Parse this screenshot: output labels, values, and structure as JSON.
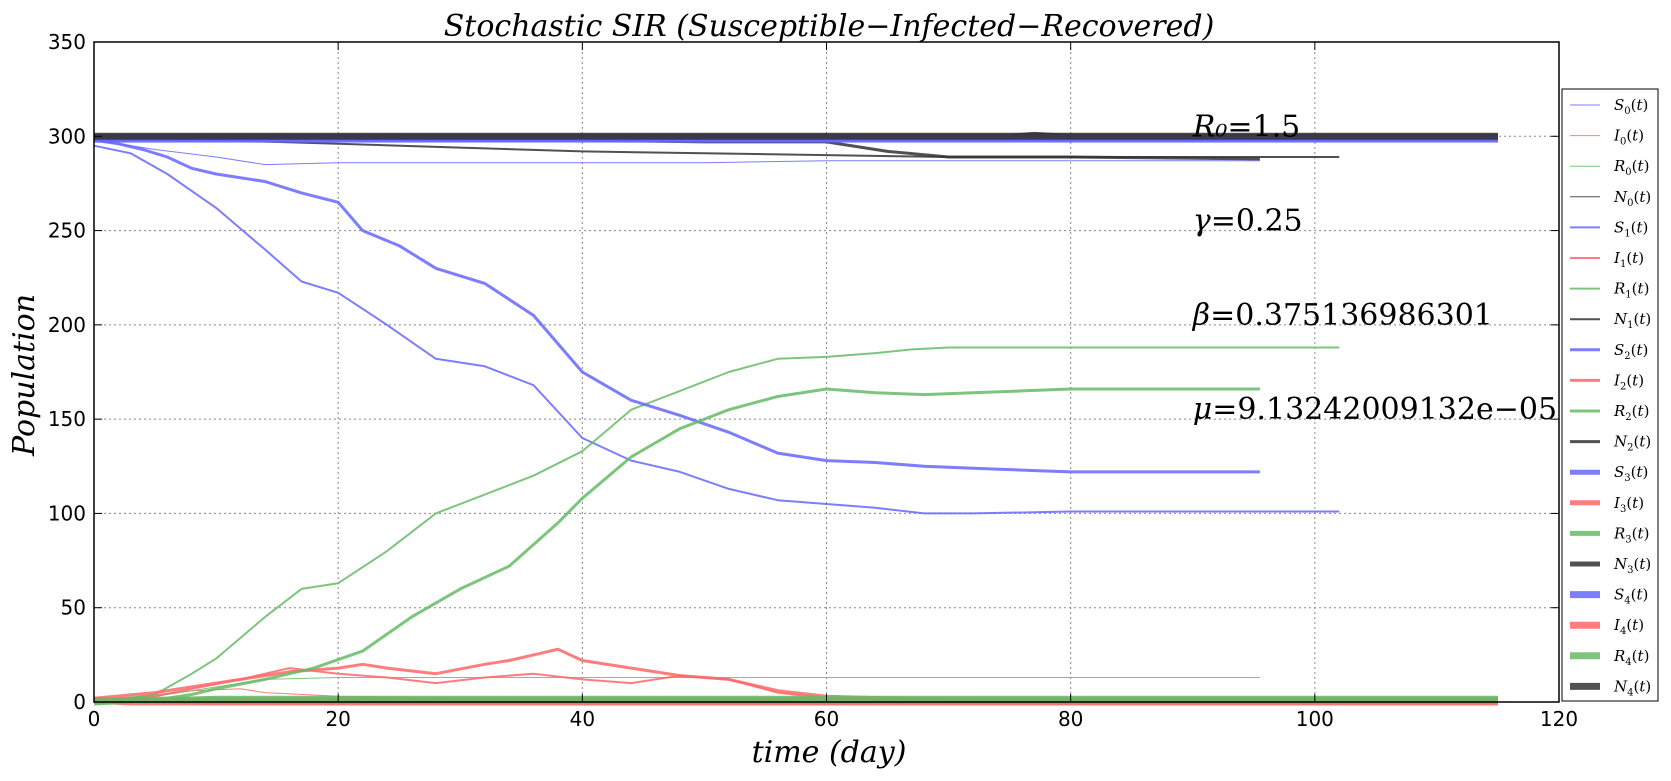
{
  "chart_data": {
    "type": "line",
    "title": "Stochastic SIR (Susceptible−Infected−Recovered)",
    "xlabel": "time (day)",
    "ylabel": "Population",
    "xlim": [
      0,
      120
    ],
    "ylim": [
      0,
      350
    ],
    "xticks": [
      0,
      20,
      40,
      60,
      80,
      100,
      120
    ],
    "yticks": [
      0,
      50,
      100,
      150,
      200,
      250,
      300,
      350
    ],
    "grid": true,
    "legend_position": "right",
    "annotations": [
      {
        "label": "R₀",
        "value": "=1.5",
        "x": 90,
        "y": 300
      },
      {
        "label": "γ",
        "value": "=0.25",
        "x": 90,
        "y": 250
      },
      {
        "label": "β",
        "value": "=0.375136986301",
        "x": 90,
        "y": 200
      },
      {
        "label": "μ",
        "value": "=9.13242009132e−05",
        "x": 90,
        "y": 150
      }
    ],
    "colors": {
      "S": "#6666ff",
      "I": "#ff6666",
      "R": "#66bb66",
      "N": "#333333",
      "grid": "#888888"
    },
    "legend": [
      {
        "var": "S",
        "sub": "0",
        "label": "S0(t)"
      },
      {
        "var": "I",
        "sub": "0",
        "label": "I0(t)"
      },
      {
        "var": "R",
        "sub": "0",
        "label": "R0(t)"
      },
      {
        "var": "N",
        "sub": "0",
        "label": "N0(t)"
      },
      {
        "var": "S",
        "sub": "1",
        "label": "S1(t)"
      },
      {
        "var": "I",
        "sub": "1",
        "label": "I1(t)"
      },
      {
        "var": "R",
        "sub": "1",
        "label": "R1(t)"
      },
      {
        "var": "N",
        "sub": "1",
        "label": "N1(t)"
      },
      {
        "var": "S",
        "sub": "2",
        "label": "S2(t)"
      },
      {
        "var": "I",
        "sub": "2",
        "label": "I2(t)"
      },
      {
        "var": "R",
        "sub": "2",
        "label": "R2(t)"
      },
      {
        "var": "N",
        "sub": "2",
        "label": "N2(t)"
      },
      {
        "var": "S",
        "sub": "3",
        "label": "S3(t)"
      },
      {
        "var": "I",
        "sub": "3",
        "label": "I3(t)"
      },
      {
        "var": "R",
        "sub": "3",
        "label": "R3(t)"
      },
      {
        "var": "N",
        "sub": "3",
        "label": "N3(t)"
      },
      {
        "var": "S",
        "sub": "4",
        "label": "S4(t)"
      },
      {
        "var": "I",
        "sub": "4",
        "label": "I4(t)"
      },
      {
        "var": "R",
        "sub": "4",
        "label": "R4(t)"
      },
      {
        "var": "N",
        "sub": "4",
        "label": "N4(t)"
      }
    ],
    "series": [
      {
        "var": "S",
        "run": 0,
        "x": [
          0,
          5,
          10,
          14,
          20,
          30,
          40,
          50,
          60,
          70,
          80,
          90,
          95.5
        ],
        "y": [
          298,
          293,
          289,
          285,
          286,
          286,
          286,
          286,
          287,
          287,
          287,
          287,
          287
        ]
      },
      {
        "var": "I",
        "run": 0,
        "x": [
          0,
          4,
          8,
          12,
          14,
          20,
          30,
          40,
          50,
          60,
          70,
          80,
          95.5
        ],
        "y": [
          1,
          3,
          6,
          7,
          5,
          3,
          2,
          2,
          1,
          1,
          0,
          0,
          0
        ]
      },
      {
        "var": "R",
        "run": 0,
        "x": [
          0,
          4,
          8,
          12,
          14,
          20,
          30,
          40,
          95.5
        ],
        "y": [
          0,
          2,
          6,
          10,
          12,
          13,
          13,
          13,
          13
        ]
      },
      {
        "var": "N",
        "run": 0,
        "x": [
          0,
          95.5
        ],
        "y": [
          300,
          300
        ]
      },
      {
        "var": "S",
        "run": 1,
        "x": [
          0,
          3,
          6,
          10,
          14,
          17,
          20,
          24,
          28,
          32,
          36,
          40,
          44,
          48,
          52,
          56,
          60,
          64,
          68,
          72,
          80,
          90,
          102
        ],
        "y": [
          295,
          291,
          280,
          262,
          240,
          223,
          217,
          200,
          182,
          178,
          168,
          140,
          128,
          122,
          113,
          107,
          105,
          103,
          100,
          100,
          101,
          101,
          101
        ]
      },
      {
        "var": "I",
        "run": 1,
        "x": [
          0,
          5,
          8,
          12,
          16,
          20,
          24,
          28,
          32,
          36,
          40,
          44,
          48,
          52,
          56,
          60,
          66,
          75,
          85,
          95,
          102
        ],
        "y": [
          1,
          3,
          7,
          12,
          18,
          15,
          13,
          10,
          13,
          15,
          12,
          10,
          14,
          12,
          5,
          2,
          1,
          1,
          0,
          0,
          0
        ]
      },
      {
        "var": "R",
        "run": 1,
        "x": [
          0,
          5,
          8,
          10,
          14,
          17,
          20,
          24,
          28,
          32,
          36,
          40,
          44,
          48,
          52,
          56,
          60,
          64,
          67,
          70,
          80,
          90,
          102
        ],
        "y": [
          0,
          4,
          15,
          23,
          45,
          60,
          63,
          80,
          100,
          110,
          120,
          133,
          155,
          165,
          175,
          182,
          183,
          185,
          187,
          188,
          188,
          188,
          188
        ]
      },
      {
        "var": "N",
        "run": 1,
        "x": [
          0,
          5,
          10,
          20,
          30,
          40,
          50,
          60,
          70,
          80,
          90,
          102
        ],
        "y": [
          299,
          299,
          298,
          296,
          294,
          292,
          291,
          290,
          289,
          289,
          289,
          289
        ]
      },
      {
        "var": "S",
        "run": 2,
        "x": [
          0,
          2,
          4,
          6,
          8,
          10,
          14,
          17,
          20,
          22,
          25,
          28,
          32,
          36,
          40,
          44,
          48,
          52,
          56,
          60,
          64,
          68,
          72,
          76,
          80,
          88,
          95.5
        ],
        "y": [
          298,
          296,
          293,
          289,
          283,
          280,
          276,
          270,
          265,
          250,
          242,
          230,
          222,
          205,
          175,
          160,
          152,
          143,
          132,
          128,
          127,
          125,
          124,
          123,
          122,
          122,
          122
        ]
      },
      {
        "var": "I",
        "run": 2,
        "x": [
          0,
          5,
          8,
          12,
          16,
          20,
          22,
          24,
          28,
          32,
          34,
          36,
          38,
          40,
          44,
          48,
          52,
          56,
          60,
          66,
          75,
          85,
          95.5
        ],
        "y": [
          2,
          5,
          8,
          12,
          16,
          18,
          20,
          18,
          15,
          20,
          22,
          25,
          28,
          22,
          18,
          14,
          12,
          6,
          3,
          2,
          1,
          0,
          0
        ]
      },
      {
        "var": "R",
        "run": 2,
        "x": [
          0,
          5,
          8,
          10,
          14,
          18,
          22,
          26,
          30,
          34,
          38,
          40,
          44,
          48,
          52,
          56,
          60,
          64,
          68,
          72,
          76,
          80,
          88,
          95.5
        ],
        "y": [
          0,
          1,
          4,
          7,
          12,
          18,
          27,
          45,
          60,
          72,
          95,
          108,
          130,
          145,
          155,
          162,
          166,
          164,
          163,
          164,
          165,
          166,
          166,
          166
        ]
      },
      {
        "var": "N",
        "run": 2,
        "x": [
          0,
          10,
          20,
          30,
          40,
          50,
          60,
          65,
          70,
          80,
          95.5
        ],
        "y": [
          300,
          300,
          299,
          298,
          298,
          297,
          297,
          292,
          289,
          289,
          288
        ]
      },
      {
        "var": "S",
        "run": 3,
        "x": [
          0,
          40,
          80,
          115
        ],
        "y": [
          298,
          298,
          298,
          298
        ]
      },
      {
        "var": "I",
        "run": 3,
        "x": [
          0,
          10,
          40,
          80,
          115
        ],
        "y": [
          1,
          0,
          0,
          0,
          0
        ]
      },
      {
        "var": "R",
        "run": 3,
        "x": [
          0,
          5,
          10,
          40,
          80,
          115
        ],
        "y": [
          0,
          1,
          2,
          2,
          2,
          2
        ]
      },
      {
        "var": "N",
        "run": 3,
        "x": [
          0,
          20,
          40,
          60,
          75,
          77,
          80,
          115
        ],
        "y": [
          300,
          300,
          300,
          300,
          300,
          301,
          300,
          300
        ]
      },
      {
        "var": "S",
        "run": 4,
        "x": [
          0,
          115
        ],
        "y": [
          299,
          299
        ]
      },
      {
        "var": "I",
        "run": 4,
        "x": [
          0,
          3,
          6,
          115
        ],
        "y": [
          1,
          0,
          0,
          0
        ]
      },
      {
        "var": "R",
        "run": 4,
        "x": [
          0,
          3,
          6,
          115
        ],
        "y": [
          0,
          1,
          1,
          1
        ]
      },
      {
        "var": "N",
        "run": 4,
        "x": [
          0,
          115
        ],
        "y": [
          300,
          300
        ]
      }
    ]
  }
}
